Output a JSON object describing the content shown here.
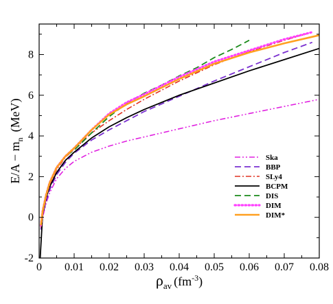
{
  "chart_data": {
    "type": "line",
    "xlabel": {
      "main": "ρ",
      "sub": "av",
      "unit": "(fm",
      "exp": "-3",
      "close": ")"
    },
    "ylabel": {
      "main": "E/A − m",
      "sub": "n",
      "unit": "(MeV)"
    },
    "xlim": [
      0,
      0.08
    ],
    "ylim": [
      -2,
      9.5
    ],
    "xticks": [
      0,
      0.01,
      0.02,
      0.03,
      0.04,
      0.05,
      0.06,
      0.07,
      0.08
    ],
    "xtick_labels": [
      "0",
      "0.01",
      "0.02",
      "0.03",
      "0.04",
      "0.05",
      "0.06",
      "0.07",
      "0.08"
    ],
    "yticks": [
      -2,
      0,
      2,
      4,
      6,
      8
    ],
    "ytick_labels": [
      "-2",
      "0",
      "2",
      "4",
      "6",
      "8"
    ],
    "grid": false,
    "legend_position": "bottom-right",
    "series": [
      {
        "name": "Ska",
        "color": "#e020e0",
        "dash": "dashdotdot",
        "x": [
          0.0005,
          0.001,
          0.002,
          0.003,
          0.005,
          0.0075,
          0.01,
          0.015,
          0.02,
          0.025,
          0.03,
          0.04,
          0.05,
          0.06,
          0.07,
          0.08
        ],
        "y": [
          -0.6,
          0.0,
          0.7,
          1.2,
          1.9,
          2.4,
          2.75,
          3.2,
          3.5,
          3.75,
          3.95,
          4.35,
          4.75,
          5.1,
          5.45,
          5.8
        ]
      },
      {
        "name": "BBP",
        "color": "#7a30d0",
        "dash": "dashed",
        "x": [
          0.0005,
          0.001,
          0.002,
          0.003,
          0.005,
          0.0075,
          0.01,
          0.015,
          0.02,
          0.025,
          0.03,
          0.04,
          0.05,
          0.06,
          0.07,
          0.078
        ],
        "y": [
          -0.6,
          0.1,
          0.8,
          1.35,
          2.1,
          2.7,
          3.15,
          3.8,
          4.3,
          4.75,
          5.2,
          5.95,
          6.7,
          7.4,
          8.1,
          8.6
        ]
      },
      {
        "name": "SLy4",
        "color": "#e03020",
        "dash": "dashdot",
        "x": [
          0.0005,
          0.001,
          0.002,
          0.003,
          0.005,
          0.0075,
          0.01,
          0.015,
          0.02,
          0.025,
          0.03,
          0.04,
          0.05,
          0.06,
          0.07,
          0.077
        ],
        "y": [
          -0.5,
          0.2,
          1.0,
          1.6,
          2.35,
          2.95,
          3.35,
          4.15,
          4.75,
          5.3,
          5.8,
          6.7,
          7.5,
          8.15,
          8.7,
          9.05
        ]
      },
      {
        "name": "BCPM",
        "color": "#000000",
        "dash": "solid",
        "x": [
          0.0003,
          0.001,
          0.002,
          0.003,
          0.005,
          0.0075,
          0.01,
          0.015,
          0.02,
          0.025,
          0.03,
          0.04,
          0.05,
          0.06,
          0.07,
          0.08
        ],
        "y": [
          -2.0,
          0.15,
          0.95,
          1.5,
          2.2,
          2.8,
          3.2,
          3.9,
          4.45,
          4.9,
          5.3,
          6.0,
          6.6,
          7.2,
          7.75,
          8.3
        ]
      },
      {
        "name": "DIS",
        "color": "#1a8a1a",
        "dash": "dashed",
        "x": [
          0.0005,
          0.001,
          0.002,
          0.003,
          0.005,
          0.0075,
          0.01,
          0.015,
          0.02,
          0.025,
          0.03,
          0.035,
          0.04,
          0.045,
          0.05,
          0.055,
          0.06
        ],
        "y": [
          -0.4,
          0.3,
          1.1,
          1.7,
          2.45,
          3.0,
          3.3,
          4.15,
          4.95,
          5.6,
          6.1,
          6.5,
          6.95,
          7.35,
          7.85,
          8.25,
          8.7
        ]
      },
      {
        "name": "DIM",
        "color": "#ff40ff",
        "dash": "dotted",
        "x": [
          0.0005,
          0.001,
          0.002,
          0.003,
          0.005,
          0.0075,
          0.01,
          0.015,
          0.02,
          0.025,
          0.03,
          0.04,
          0.05,
          0.06,
          0.07,
          0.078
        ],
        "y": [
          -0.4,
          0.3,
          1.1,
          1.7,
          2.45,
          3.0,
          3.4,
          4.3,
          5.1,
          5.65,
          6.05,
          6.9,
          7.65,
          8.2,
          8.75,
          9.1
        ]
      },
      {
        "name": "DIM*",
        "color": "#ffa020",
        "dash": "solid-thick",
        "x": [
          0.0005,
          0.001,
          0.002,
          0.003,
          0.005,
          0.0075,
          0.01,
          0.015,
          0.02,
          0.025,
          0.03,
          0.04,
          0.05,
          0.06,
          0.07,
          0.08
        ],
        "y": [
          -0.4,
          0.3,
          1.1,
          1.7,
          2.45,
          3.0,
          3.4,
          4.3,
          5.05,
          5.55,
          5.95,
          6.8,
          7.55,
          8.1,
          8.55,
          8.95
        ]
      }
    ]
  }
}
